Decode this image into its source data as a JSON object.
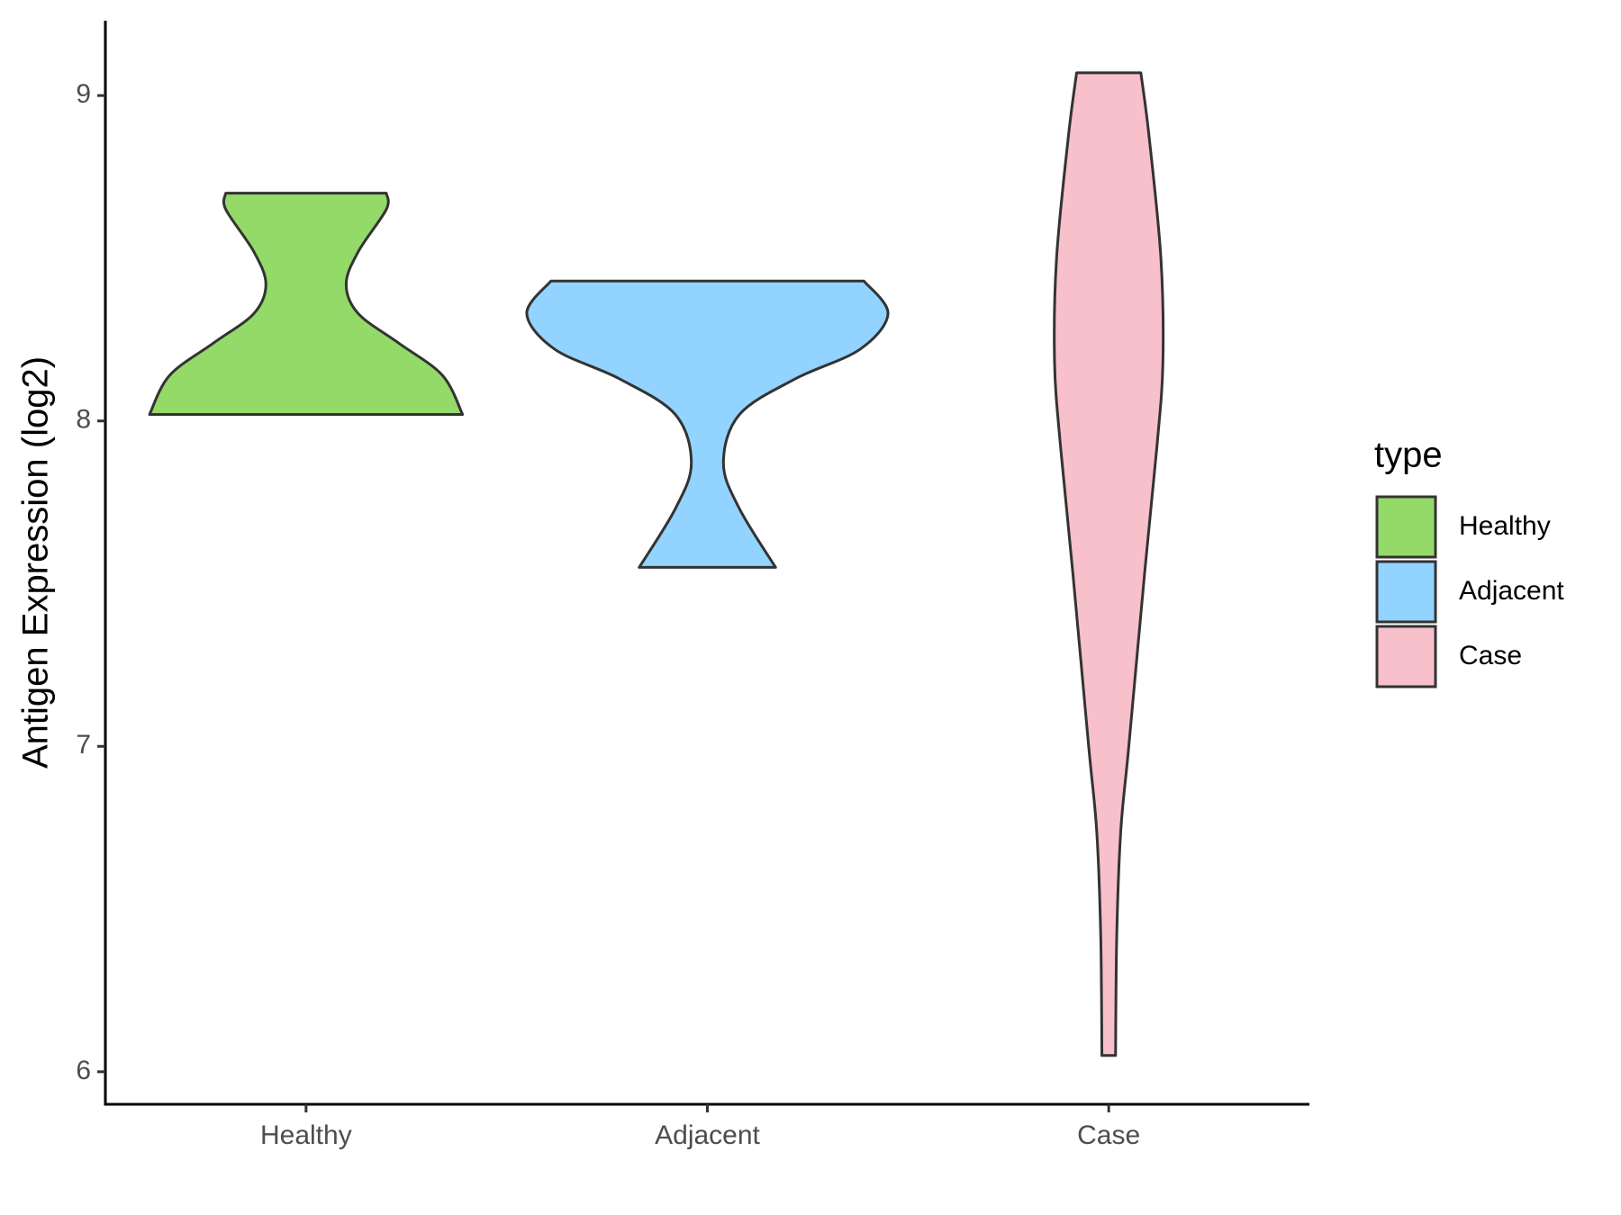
{
  "chart_data": {
    "type": "violin",
    "y_label": "Antigen Expression (log2)",
    "categories": [
      "Healthy",
      "Adjacent",
      "Case"
    ],
    "ylim": [
      5.9,
      9.23
    ],
    "yticks": [
      6,
      7,
      8,
      9
    ],
    "legend_title": "type",
    "legend_position": "right",
    "series": [
      {
        "name": "Healthy",
        "color": "#93da69",
        "y": [
          8.02,
          8.14,
          8.24,
          8.33,
          8.42,
          8.52,
          8.65,
          8.7
        ],
        "width": [
          0.39,
          0.34,
          0.23,
          0.13,
          0.1,
          0.13,
          0.2,
          0.2
        ]
      },
      {
        "name": "Adjacent",
        "color": "#93d3ff",
        "y": [
          7.55,
          7.73,
          7.87,
          8.02,
          8.13,
          8.22,
          8.33,
          8.43
        ],
        "width": [
          0.17,
          0.08,
          0.04,
          0.08,
          0.22,
          0.38,
          0.45,
          0.39
        ]
      },
      {
        "name": "Case",
        "color": "#f7c0cb",
        "y": [
          6.05,
          6.42,
          6.74,
          7.0,
          7.54,
          7.92,
          8.18,
          8.5,
          8.88,
          9.07
        ],
        "width": [
          0.017,
          0.02,
          0.03,
          0.05,
          0.09,
          0.12,
          0.135,
          0.13,
          0.1,
          0.08
        ]
      }
    ]
  }
}
